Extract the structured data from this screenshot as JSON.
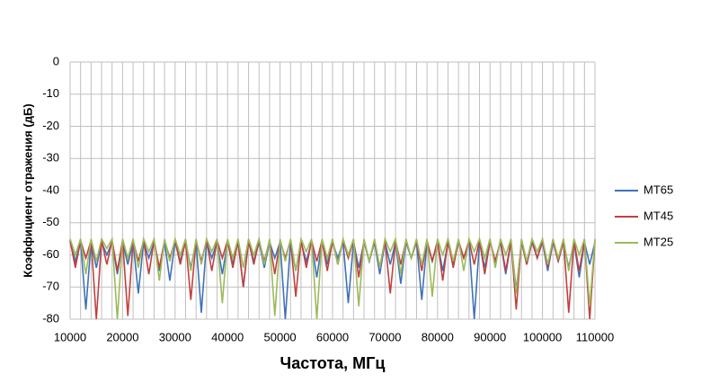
{
  "chart_data": {
    "type": "line",
    "x_label": "Частота, МГц",
    "y_label": "Коэффициент отражения (дБ)",
    "xlim": [
      10000,
      110000
    ],
    "ylim": [
      -80,
      0
    ],
    "xticks": [
      10000,
      20000,
      30000,
      40000,
      50000,
      60000,
      70000,
      80000,
      90000,
      100000,
      110000
    ],
    "yticks": [
      0,
      -10,
      -20,
      -30,
      -40,
      -50,
      -60,
      -70,
      -80
    ],
    "x_grid": [
      10000,
      12000,
      14000,
      16000,
      18000,
      20000,
      22000,
      24000,
      26000,
      28000,
      30000,
      32000,
      34000,
      36000,
      38000,
      40000,
      42000,
      44000,
      46000,
      48000,
      50000,
      52000,
      54000,
      56000,
      58000,
      60000,
      62000,
      64000,
      66000,
      68000,
      70000,
      72000,
      74000,
      76000,
      78000,
      80000,
      82000,
      84000,
      86000,
      88000,
      90000,
      92000,
      94000,
      96000,
      98000,
      100000,
      102000,
      104000,
      106000,
      108000,
      110000
    ],
    "grid": true,
    "legend": "right",
    "x": [
      10000,
      11000,
      12000,
      13000,
      14000,
      15000,
      16000,
      17000,
      18000,
      19000,
      20000,
      21000,
      22000,
      23000,
      24000,
      25000,
      26000,
      27000,
      28000,
      29000,
      30000,
      31000,
      32000,
      33000,
      34000,
      35000,
      36000,
      37000,
      38000,
      39000,
      40000,
      41000,
      42000,
      43000,
      44000,
      45000,
      46000,
      47000,
      48000,
      49000,
      50000,
      51000,
      52000,
      53000,
      54000,
      55000,
      56000,
      57000,
      58000,
      59000,
      60000,
      61000,
      62000,
      63000,
      64000,
      65000,
      66000,
      67000,
      68000,
      69000,
      70000,
      71000,
      72000,
      73000,
      74000,
      75000,
      76000,
      77000,
      78000,
      79000,
      80000,
      81000,
      82000,
      83000,
      84000,
      85000,
      86000,
      87000,
      88000,
      89000,
      90000,
      91000,
      92000,
      93000,
      94000,
      95000,
      96000,
      97000,
      98000,
      99000,
      100000,
      101000,
      102000,
      103000,
      104000,
      105000,
      106000,
      107000,
      108000,
      109000,
      110000
    ],
    "series": [
      {
        "name": "MT65",
        "color": "#3f72b8",
        "values": [
          -56,
          -62,
          -56,
          -77,
          -56,
          -64,
          -56,
          -60,
          -56,
          -66,
          -56,
          -63,
          -56,
          -72,
          -56,
          -61,
          -56,
          -65,
          -56,
          -68,
          -56,
          -62,
          -56,
          -64,
          -56,
          -78,
          -56,
          -61,
          -56,
          -66,
          -56,
          -63,
          -56,
          -70,
          -56,
          -62,
          -56,
          -64,
          -56,
          -61,
          -56,
          -80,
          -56,
          -65,
          -56,
          -62,
          -56,
          -67,
          -56,
          -63,
          -56,
          -61,
          -56,
          -75,
          -56,
          -64,
          -56,
          -62,
          -56,
          -66,
          -56,
          -63,
          -56,
          -69,
          -56,
          -61,
          -56,
          -74,
          -56,
          -62,
          -56,
          -65,
          -56,
          -63,
          -56,
          -61,
          -56,
          -80,
          -56,
          -64,
          -56,
          -62,
          -56,
          -66,
          -56,
          -71,
          -56,
          -63,
          -56,
          -61,
          -56,
          -65,
          -56,
          -62,
          -56,
          -64,
          -56,
          -67,
          -56,
          -63,
          -56
        ]
      },
      {
        "name": "MT45",
        "color": "#c0413e",
        "values": [
          -55.5,
          -64,
          -55.5,
          -61,
          -55.5,
          -80,
          -55.5,
          -63,
          -55.5,
          -65,
          -55.5,
          -79,
          -55.5,
          -62,
          -55.5,
          -66,
          -55.5,
          -64,
          -55.5,
          -61,
          -55.5,
          -63,
          -55.5,
          -74,
          -55.5,
          -62,
          -55.5,
          -65,
          -55.5,
          -61,
          -55.5,
          -64,
          -55.5,
          -70,
          -55.5,
          -63,
          -55.5,
          -62,
          -55.5,
          -66,
          -55.5,
          -61,
          -55.5,
          -73,
          -55.5,
          -64,
          -55.5,
          -62,
          -55.5,
          -65,
          -55.5,
          -63,
          -55.5,
          -61,
          -55.5,
          -67,
          -55.5,
          -62,
          -55.5,
          -64,
          -55.5,
          -72,
          -55.5,
          -63,
          -55.5,
          -61,
          -55.5,
          -65,
          -55.5,
          -62,
          -55.5,
          -68,
          -55.5,
          -64,
          -55.5,
          -61,
          -55.5,
          -63,
          -55.5,
          -66,
          -55.5,
          -62,
          -55.5,
          -65,
          -55.5,
          -77,
          -55.5,
          -63,
          -55.5,
          -61,
          -55.5,
          -64,
          -55.5,
          -62,
          -55.5,
          -78,
          -55.5,
          -65,
          -55.5,
          -80,
          -55.5
        ]
      },
      {
        "name": "MT25",
        "color": "#9bbb59",
        "values": [
          -55,
          -60,
          -55,
          -66,
          -55,
          -62,
          -55,
          -58,
          -55,
          -80,
          -55,
          -61,
          -55,
          -64,
          -55,
          -59,
          -55,
          -68,
          -55,
          -62,
          -55,
          -60,
          -55,
          -65,
          -55,
          -63,
          -55,
          -59,
          -55,
          -75,
          -55,
          -61,
          -55,
          -64,
          -55,
          -60,
          -55,
          -63,
          -55,
          -79,
          -55,
          -62,
          -55,
          -65,
          -55,
          -59,
          -55,
          -80,
          -55,
          -61,
          -55,
          -63,
          -55,
          -60,
          -55,
          -76,
          -55,
          -62,
          -55,
          -64,
          -55,
          -59,
          -55,
          -66,
          -55,
          -61,
          -55,
          -63,
          -55,
          -73,
          -55,
          -60,
          -55,
          -62,
          -55,
          -65,
          -55,
          -59,
          -55,
          -61,
          -55,
          -64,
          -55,
          -60,
          -55,
          -72,
          -55,
          -62,
          -55,
          -59,
          -55,
          -63,
          -55,
          -61,
          -55,
          -65,
          -55,
          -60,
          -55,
          -76,
          -55
        ]
      }
    ]
  }
}
